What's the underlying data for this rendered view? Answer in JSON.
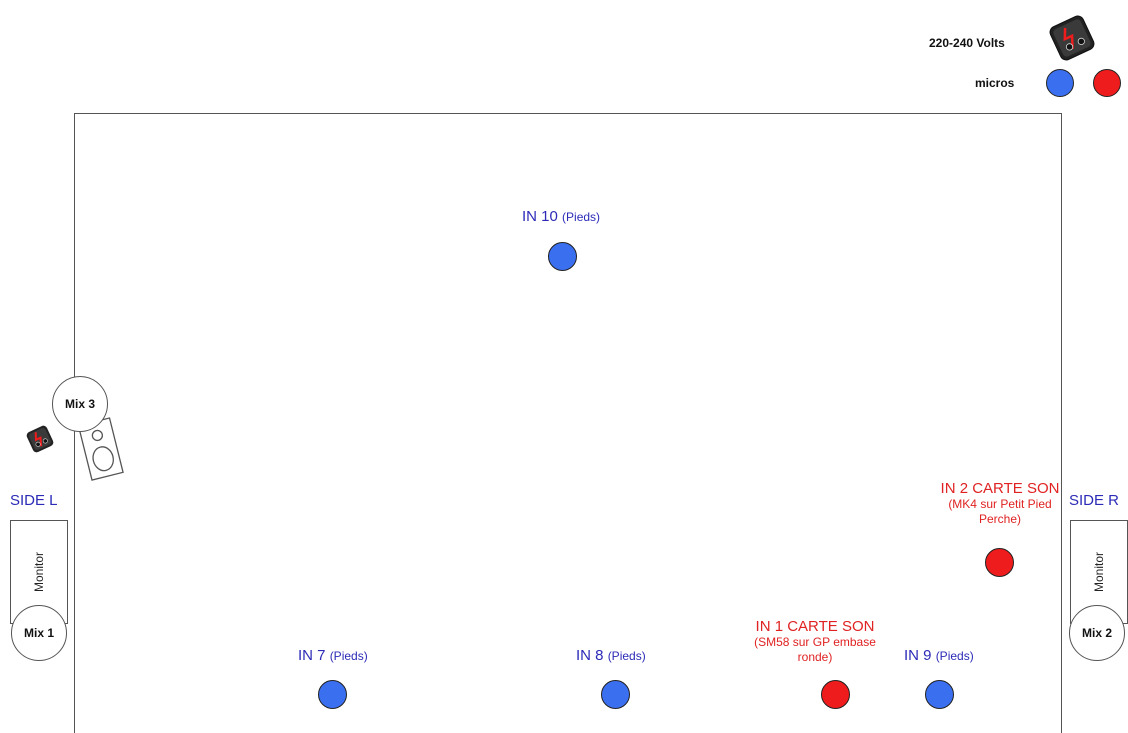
{
  "legend": {
    "power_label": "220-240 Volts",
    "micros_label": "micros"
  },
  "colors": {
    "mic_blue": "#3a6ff0",
    "mic_red": "#ee1c1c",
    "label_blue": "#2b2bb8",
    "label_red": "#e02222"
  },
  "sides": {
    "left": "SIDE L",
    "right": "SIDE R"
  },
  "monitors": {
    "left": "Monitor",
    "right": "Monitor"
  },
  "mixes": {
    "mix1": "Mix 1",
    "mix2": "Mix 2",
    "mix3": "Mix 3"
  },
  "inputs": {
    "in10": {
      "name": "IN 10",
      "detail": "(Pieds)"
    },
    "in7": {
      "name": "IN 7",
      "detail": "(Pieds)"
    },
    "in8": {
      "name": "IN 8",
      "detail": "(Pieds)"
    },
    "in9": {
      "name": "IN 9",
      "detail": "(Pieds)"
    },
    "in1": {
      "name": "IN 1 CARTE SON",
      "detail_line1": "(SM58 sur GP embase",
      "detail_line2": "ronde)"
    },
    "in2": {
      "name": "IN 2 CARTE SON",
      "detail_line1": "(MK4 sur Petit Pied",
      "detail_line2": "Perche)"
    }
  }
}
